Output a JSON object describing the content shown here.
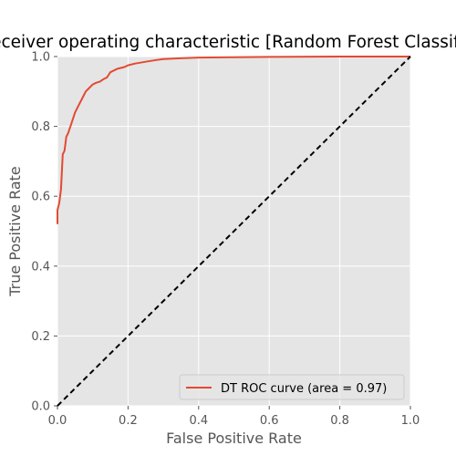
{
  "chart_data": {
    "type": "line",
    "title": "Receiver operating characteristic [Random Forest Classifier]",
    "xlabel": "False Positive Rate",
    "ylabel": "True Positive Rate",
    "xlim": [
      0.0,
      1.0
    ],
    "ylim": [
      0.0,
      1.0
    ],
    "xticks": [
      "0.0",
      "0.2",
      "0.4",
      "0.6",
      "0.8",
      "1.0"
    ],
    "yticks": [
      "0.0",
      "0.2",
      "0.4",
      "0.6",
      "0.8",
      "1.0"
    ],
    "grid": true,
    "legend_position": "bottom-right",
    "series": [
      {
        "name": "DT ROC curve (area = 0.97)",
        "color": "#e24a33",
        "style": "solid",
        "x": [
          0.0,
          0.0,
          0.005,
          0.01,
          0.015,
          0.02,
          0.025,
          0.03,
          0.04,
          0.05,
          0.06,
          0.07,
          0.08,
          0.09,
          0.1,
          0.11,
          0.12,
          0.13,
          0.14,
          0.15,
          0.17,
          0.19,
          0.2,
          0.22,
          0.25,
          0.28,
          0.3,
          0.35,
          0.4,
          0.5,
          0.6,
          0.8,
          1.0
        ],
        "y": [
          0.52,
          0.56,
          0.58,
          0.62,
          0.72,
          0.73,
          0.77,
          0.78,
          0.81,
          0.84,
          0.86,
          0.88,
          0.9,
          0.91,
          0.92,
          0.925,
          0.928,
          0.935,
          0.94,
          0.955,
          0.965,
          0.97,
          0.975,
          0.98,
          0.985,
          0.99,
          0.993,
          0.995,
          0.997,
          0.998,
          0.999,
          1.0,
          1.0
        ]
      },
      {
        "name": "",
        "color": "#000000",
        "style": "dashed",
        "x": [
          0.0,
          1.0
        ],
        "y": [
          0.0,
          1.0
        ]
      }
    ]
  }
}
